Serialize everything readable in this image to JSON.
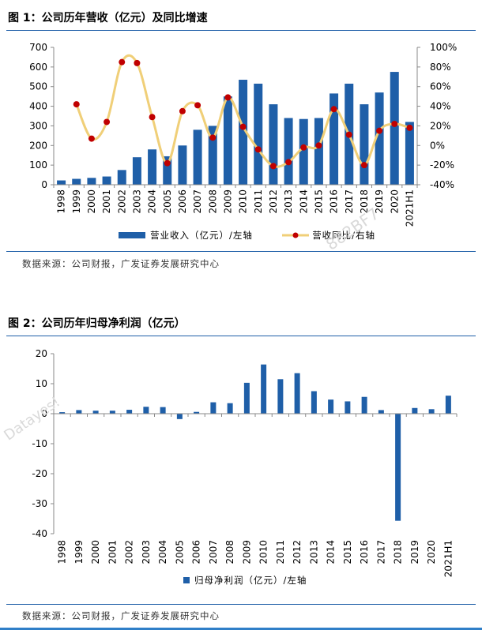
{
  "fig1": {
    "title": "图 1：公司历年营收（亿元）及同比增速",
    "source": "数据来源：公司财报，广发证券发展研究中心",
    "legend_bar": "营业收入（亿元）/左轴",
    "legend_line": "营收同比/右轴"
  },
  "fig2": {
    "title": "图 2：公司历年归母净利润（亿元）",
    "source": "数据来源：公司财报，广发证券发展研究中心",
    "legend_bar": "归母净利润（亿元）/左轴"
  },
  "watermarks": {
    "w1": "882BF7",
    "w2": "Datayes!"
  },
  "colors": {
    "bar": "#1f5fa8",
    "line": "#f0cf78",
    "marker": "#c00000",
    "axis": "#888888"
  },
  "chart_data": [
    {
      "type": "bar+line",
      "title": "图 1：公司历年营收（亿元）及同比增速",
      "categories": [
        "1998",
        "1999",
        "2000",
        "2001",
        "2002",
        "2003",
        "2004",
        "2005",
        "2006",
        "2007",
        "2008",
        "2009",
        "2010",
        "2011",
        "2012",
        "2013",
        "2014",
        "2015",
        "2016",
        "2017",
        "2018",
        "2019",
        "2020",
        "2021H1"
      ],
      "series": [
        {
          "name": "营业收入（亿元）/左轴",
          "kind": "bar",
          "axis": "left",
          "values": [
            22,
            30,
            35,
            42,
            75,
            140,
            180,
            145,
            200,
            280,
            300,
            450,
            535,
            515,
            410,
            340,
            335,
            340,
            465,
            515,
            410,
            470,
            575,
            320
          ]
        },
        {
          "name": "营收同比/右轴",
          "kind": "line",
          "axis": "right",
          "values": [
            null,
            42,
            7,
            24,
            85,
            84,
            29,
            -18,
            35,
            41,
            8,
            49,
            19,
            -4,
            -21,
            -17,
            -2,
            0,
            37,
            11,
            -20,
            15,
            22,
            18
          ]
        }
      ],
      "y_left": {
        "min": 0,
        "max": 700,
        "step": 100,
        "ticks": [
          "0",
          "100",
          "200",
          "300",
          "400",
          "500",
          "600",
          "700"
        ]
      },
      "y_right": {
        "min": -40,
        "max": 100,
        "step": 20,
        "ticks": [
          "-40%",
          "-20%",
          "0%",
          "20%",
          "40%",
          "60%",
          "80%",
          "100%"
        ]
      },
      "legend_position": "bottom"
    },
    {
      "type": "bar",
      "title": "图 2：公司历年归母净利润（亿元）",
      "categories": [
        "1998",
        "1999",
        "2000",
        "2001",
        "2002",
        "2003",
        "2004",
        "2005",
        "2006",
        "2007",
        "2008",
        "2009",
        "2010",
        "2011",
        "2012",
        "2013",
        "2014",
        "2015",
        "2016",
        "2017",
        "2018",
        "2019",
        "2020",
        "2021H1"
      ],
      "series": [
        {
          "name": "归母净利润（亿元）/左轴",
          "values": [
            0.5,
            1.2,
            1.0,
            1.0,
            1.3,
            2.3,
            2.2,
            -1.8,
            0.6,
            3.8,
            3.5,
            10.3,
            16.4,
            11.5,
            13.5,
            7.5,
            4.7,
            4.1,
            5.6,
            1.2,
            -35.7,
            1.9,
            1.5,
            6.0
          ]
        }
      ],
      "y": {
        "min": -40,
        "max": 20,
        "step": 10,
        "ticks": [
          "-40",
          "-30",
          "-20",
          "-10",
          "0",
          "10",
          "20"
        ]
      },
      "legend_position": "bottom"
    }
  ]
}
